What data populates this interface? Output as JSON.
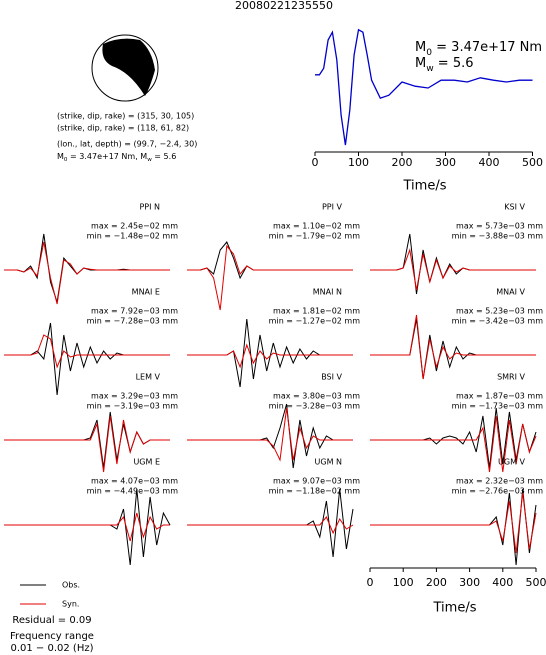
{
  "chart_data": [
    {
      "type": "line",
      "title": "20080221235550",
      "x": [
        0,
        10,
        20,
        30,
        40,
        50,
        60,
        70,
        80,
        90,
        100,
        110,
        120,
        130,
        150,
        170,
        200,
        230,
        260,
        290,
        320,
        350,
        380,
        410,
        440,
        470,
        500
      ],
      "values": [
        0.17,
        0.17,
        0.28,
        0.75,
        0.88,
        0.42,
        -0.5,
        -1,
        -0.42,
        0.5,
        0.92,
        0.88,
        0.5,
        0.08,
        -0.22,
        -0.17,
        0.05,
        -0.02,
        -0.05,
        0.08,
        0.08,
        0.05,
        0.12,
        0.08,
        0.05,
        0.08,
        0.08
      ],
      "color": "#0000cc",
      "xlim": [
        0,
        510
      ],
      "ylim": [
        -1,
        1
      ],
      "xticks": [
        0,
        100,
        200,
        300,
        400,
        500
      ],
      "xlabel": "Time/s",
      "annotations": [
        [
          "M",
          "0",
          " = 3.47e+17 Nm"
        ],
        [
          "M",
          "w",
          " = 5.6"
        ]
      ],
      "mechanism": [
        "(strike, dip, rake) = (315, 30, 105)",
        "(strike, dip, rake) = (118, 61, 82)",
        "(lon., lat, depth) = (99.7, −2.4, 30)",
        [
          "M",
          "0",
          " = 3.47e+17 Nm, M",
          "w",
          " = 5.6"
        ]
      ]
    },
    {
      "type": "waveform",
      "x": [
        0,
        20,
        40,
        60,
        80,
        100,
        120,
        140,
        160,
        180,
        200,
        220,
        240,
        260,
        280,
        300,
        320,
        340,
        360,
        380,
        400,
        420,
        440,
        460,
        480,
        500
      ],
      "xlim": [
        0,
        500
      ],
      "xticks": [
        0,
        100,
        200,
        300,
        400,
        500
      ],
      "xlabel": "Time/s",
      "legend": [
        {
          "name": "Obs.",
          "color": "#000000"
        },
        {
          "name": "Syn.",
          "color": "#e00000"
        }
      ],
      "residual": "Residual = 0.09",
      "frequency": [
        "Frequency range",
        "0.01 − 0.02 (Hz)"
      ],
      "panels": [
        {
          "station": "PPI N",
          "max": "max = 2.45e−02 mm",
          "min": "min = −1.48e−02 mm",
          "obs": [
            0,
            0,
            0,
            -0.05,
            0.1,
            -0.2,
            0.9,
            -0.3,
            -0.8,
            0.3,
            0.1,
            -0.1,
            0.05,
            0,
            0,
            0,
            0,
            0,
            0.02,
            0,
            0,
            0,
            0,
            0,
            0,
            0
          ],
          "syn": [
            0,
            0,
            0,
            -0.05,
            0.05,
            -0.15,
            0.7,
            -0.2,
            -0.85,
            0.25,
            0.15,
            -0.1,
            0.05,
            0.02,
            0,
            0,
            0,
            0,
            0,
            0,
            0,
            0,
            0,
            0,
            0,
            0
          ]
        },
        {
          "station": "PPI V",
          "max": "max = 1.10e−02 mm",
          "min": "min = −1.79e−02 mm",
          "obs": [
            0,
            0,
            0,
            0.05,
            -0.1,
            0.5,
            0.7,
            0.3,
            -0.2,
            0.1,
            0,
            0,
            0,
            0,
            0,
            0,
            0,
            0,
            0,
            0,
            0,
            0,
            0,
            0,
            0,
            0
          ],
          "syn": [
            0,
            0,
            0,
            0.05,
            -0.2,
            -1,
            0.6,
            0.4,
            -0.1,
            0.1,
            0,
            0,
            0,
            0,
            0,
            0,
            0,
            0,
            0,
            0,
            0,
            0,
            0,
            0,
            0,
            0
          ]
        },
        {
          "station": "KSI V",
          "max": "max = 5.73e−03 mm",
          "min": "min = −3.88e−03 mm",
          "obs": [
            0,
            0,
            0,
            0,
            0,
            0.05,
            0.9,
            -0.6,
            0.5,
            -0.3,
            0.3,
            -0.2,
            0.15,
            -0.1,
            0.05,
            0,
            0,
            0,
            0,
            0,
            0,
            0,
            0,
            0,
            0,
            0
          ],
          "syn": [
            0,
            0,
            0,
            0,
            0,
            0.05,
            0.5,
            -0.5,
            0.4,
            -0.3,
            0.25,
            -0.2,
            0.1,
            -0.05,
            0.05,
            0,
            0,
            0,
            0,
            0,
            0,
            0,
            0,
            0,
            0,
            0
          ]
        },
        {
          "station": "MNAI E",
          "max": "max = 7.92e−03 mm",
          "min": "min = −7.28e−03 mm",
          "obs": [
            0,
            0,
            0,
            0,
            0,
            0.1,
            -0.1,
            0.8,
            -1,
            0.5,
            -0.4,
            0.3,
            -0.3,
            0.2,
            -0.2,
            0.1,
            -0.1,
            0.05,
            0,
            0,
            0,
            0,
            0,
            0,
            0,
            0
          ],
          "syn": [
            0,
            0,
            0,
            0,
            0,
            0.05,
            0.5,
            0.4,
            -0.3,
            0.1,
            -0.05,
            0,
            0,
            0,
            0,
            0,
            0,
            0,
            0,
            0,
            0,
            0,
            0,
            0,
            0,
            0
          ]
        },
        {
          "station": "MNAI N",
          "max": "max = 1.81e−02 mm",
          "min": "min = −1.27e−02 mm",
          "obs": [
            0,
            0,
            0,
            0,
            0,
            0,
            0,
            0.1,
            -0.8,
            0.9,
            -0.6,
            0.5,
            -0.4,
            0.3,
            -0.3,
            0.2,
            -0.2,
            0.15,
            -0.1,
            0.1,
            0,
            0,
            0,
            0,
            0,
            0
          ],
          "syn": [
            0,
            0,
            0,
            0,
            0,
            0,
            0,
            0.1,
            -0.3,
            0.25,
            -0.2,
            0.1,
            -0.1,
            0.05,
            0,
            0,
            0,
            0,
            0,
            0,
            0,
            0,
            0,
            0,
            0,
            0
          ]
        },
        {
          "station": "MNAI V",
          "max": "max = 5.23e−03 mm",
          "min": "min = −3.42e−03 mm",
          "obs": [
            0,
            0,
            0,
            0,
            0,
            0,
            0,
            0.9,
            -0.6,
            0.5,
            -0.4,
            0.35,
            -0.3,
            0.2,
            -0.1,
            0.05,
            0,
            0,
            0,
            0,
            0,
            0,
            0,
            0,
            0,
            0
          ],
          "syn": [
            0,
            0,
            0,
            0,
            0,
            0,
            0,
            1,
            -0.6,
            0.4,
            -0.3,
            0.2,
            -0.1,
            0.05,
            0,
            0,
            0,
            0,
            0,
            0,
            0,
            0,
            0,
            0,
            0,
            0
          ]
        },
        {
          "station": "LEM V",
          "max": "max = 3.29e−03 mm",
          "min": "min = −3.19e−03 mm",
          "obs": [
            0,
            0,
            0,
            0,
            0,
            0,
            0,
            0,
            0,
            0,
            0,
            0,
            0,
            0.05,
            0.5,
            -0.7,
            0.7,
            -0.5,
            0.4,
            -0.3,
            0.2,
            -0.1,
            0,
            0,
            0,
            0
          ],
          "syn": [
            0,
            0,
            0,
            0,
            0,
            0,
            0,
            0,
            0,
            0,
            0,
            0,
            0,
            0,
            0.4,
            -0.8,
            0.6,
            -0.6,
            0.5,
            -0.3,
            0.2,
            -0.1,
            0,
            0,
            0,
            0
          ]
        },
        {
          "station": "BSI V",
          "max": "max = 3.80e−03 mm",
          "min": "min = −3.28e−03 mm",
          "obs": [
            0,
            0,
            0,
            0,
            0,
            0,
            0,
            0,
            0,
            0,
            0,
            0,
            0.05,
            -0.2,
            0.3,
            0.9,
            -0.7,
            0.5,
            -0.4,
            0.3,
            -0.2,
            0.1,
            0,
            0,
            0,
            0
          ],
          "syn": [
            0,
            0,
            0,
            0,
            0,
            0,
            0,
            0,
            0,
            0,
            0,
            0,
            0,
            -0.15,
            -0.5,
            0.8,
            -0.5,
            0.3,
            -0.2,
            0.1,
            0,
            0,
            0,
            0,
            0,
            0
          ]
        },
        {
          "station": "SMRI V",
          "max": "max = 1.87e−03 mm",
          "min": "min = −1.73e−03 mm",
          "obs": [
            0,
            0,
            0,
            0,
            0,
            0,
            0,
            0,
            0,
            0.05,
            -0.1,
            0.05,
            0.1,
            0.05,
            -0.1,
            0.2,
            -0.3,
            0.6,
            -0.7,
            0.8,
            -0.6,
            0.7,
            -0.5,
            0.4,
            -0.3,
            0.2
          ],
          "syn": [
            0,
            0,
            0,
            0,
            0,
            0,
            0,
            0,
            0,
            0,
            0,
            0,
            0,
            0,
            0,
            0,
            0,
            0.3,
            -0.8,
            0.6,
            -0.8,
            0.5,
            -0.6,
            0.4,
            -0.3,
            0.1
          ]
        },
        {
          "station": "UGM E",
          "max": "max = 4.07e−03 mm",
          "min": "min = −4.49e−03 mm",
          "obs": [
            0,
            0,
            0,
            0,
            0,
            0,
            0,
            0,
            0,
            0,
            0,
            0,
            0,
            0,
            0,
            0,
            0,
            -0.1,
            0.4,
            -1,
            0.9,
            -0.8,
            0.7,
            -0.5,
            0.3,
            0
          ],
          "syn": [
            0,
            0,
            0,
            0,
            0,
            0,
            0,
            0,
            0,
            0,
            0,
            0,
            0,
            0,
            0,
            0,
            0,
            0,
            0.2,
            -0.4,
            0.3,
            -0.3,
            0.2,
            -0.1,
            0,
            0
          ]
        },
        {
          "station": "UGM N",
          "max": "max = 9.07e−03 mm",
          "min": "min = −1.18e−02 mm",
          "obs": [
            0,
            0,
            0,
            0,
            0,
            0,
            0,
            0,
            0,
            0,
            0,
            0,
            0,
            0,
            0,
            0,
            0,
            0,
            0,
            0.1,
            -0.3,
            0.6,
            -0.8,
            0.9,
            -0.6,
            0.4
          ],
          "syn": [
            0,
            0,
            0,
            0,
            0,
            0,
            0,
            0,
            0,
            0,
            0,
            0,
            0,
            0,
            0,
            0,
            0,
            0,
            0,
            0,
            0,
            0.2,
            -0.2,
            0.15,
            -0.1,
            0
          ]
        },
        {
          "station": "UGM V",
          "max": "max = 2.32e−03 mm",
          "min": "min = −2.76e−03 mm",
          "obs": [
            0,
            0,
            0,
            0,
            0,
            0,
            0,
            0,
            0,
            0,
            0,
            0,
            0,
            0,
            0,
            0,
            0,
            0,
            0,
            0.2,
            -0.5,
            0.8,
            -1,
            0.9,
            -0.7,
            0.5
          ],
          "syn": [
            0,
            0,
            0,
            0,
            0,
            0,
            0,
            0,
            0,
            0,
            0,
            0,
            0,
            0,
            0,
            0,
            0,
            0,
            0,
            0.1,
            -0.4,
            0.6,
            -0.7,
            0.8,
            -0.6,
            0.3
          ]
        }
      ]
    }
  ]
}
